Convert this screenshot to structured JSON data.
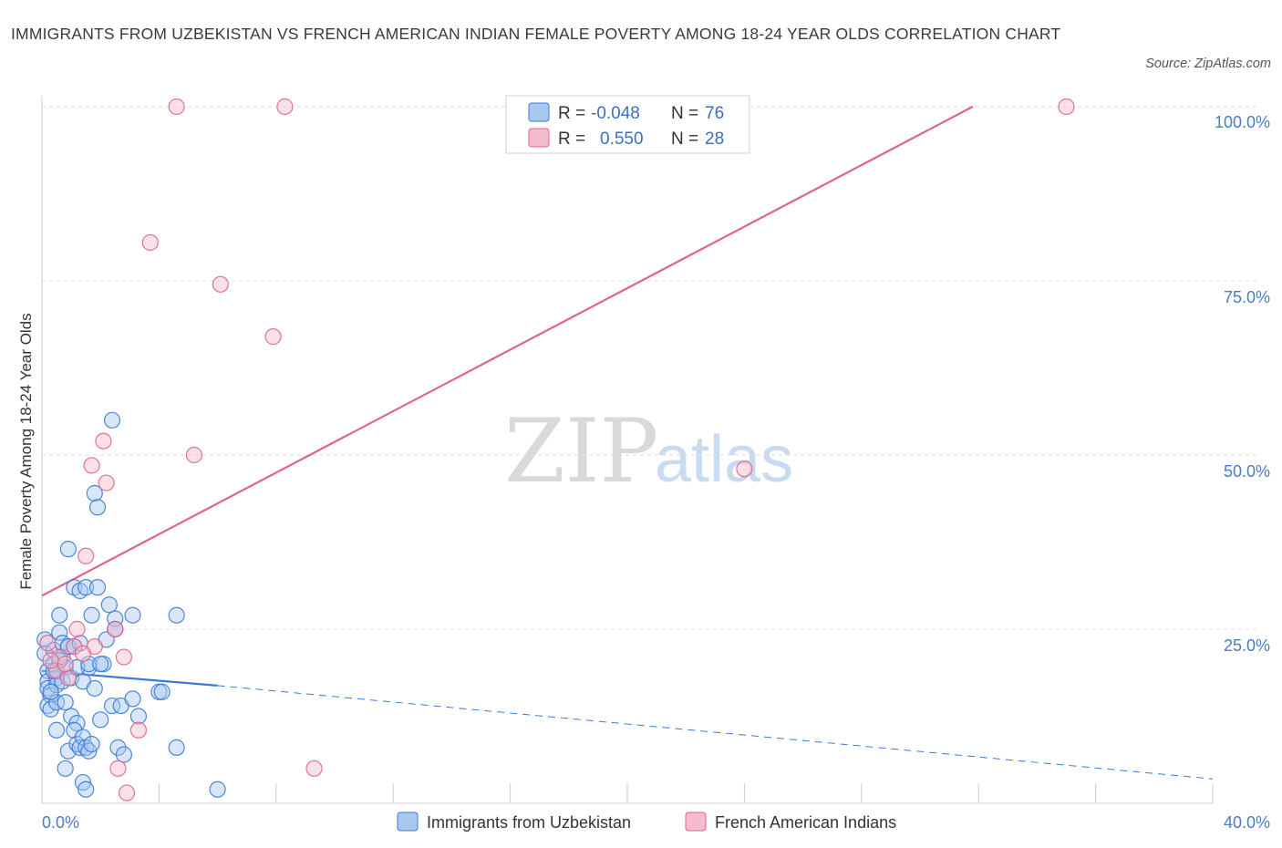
{
  "title": "IMMIGRANTS FROM UZBEKISTAN VS FRENCH AMERICAN INDIAN FEMALE POVERTY AMONG 18-24 YEAR OLDS CORRELATION CHART",
  "source": "Source: ZipAtlas.com",
  "watermark": {
    "zip": "ZIP",
    "atlas": "atlas"
  },
  "colors": {
    "blue": "#3a7bd5",
    "blue_fill": "#a9c8f0",
    "pink": "#e0648a",
    "pink_fill": "#f5bccd",
    "grid": "#dddddd",
    "tick_label": "#4a7cc4"
  },
  "chart_data": {
    "type": "scatter",
    "title": "IMMIGRANTS FROM UZBEKISTAN VS FRENCH AMERICAN INDIAN FEMALE POVERTY AMONG 18-24 YEAR OLDS CORRELATION CHART",
    "xlabel": "",
    "ylabel": "Female Poverty Among 18-24 Year Olds",
    "xlim": [
      0,
      40
    ],
    "ylim": [
      0,
      100
    ],
    "x_tick_labels": [
      "0.0%",
      "40.0%"
    ],
    "y_ticks": [
      25,
      50,
      75,
      100
    ],
    "y_tick_labels": [
      "25.0%",
      "50.0%",
      "75.0%",
      "100.0%"
    ],
    "legend": {
      "position": "top-center",
      "entries": [
        {
          "r_label": "R =",
          "r": "-0.048",
          "n_label": "N =",
          "n": "76"
        },
        {
          "r_label": "R =",
          "r": "0.550",
          "n_label": "N =",
          "n": "28"
        }
      ]
    },
    "bottom_legend": [
      "Immigrants from Uzbekistan",
      "French American Indians"
    ],
    "series": [
      {
        "name": "Immigrants from Uzbekistan",
        "color": "blue",
        "trend": {
          "solid": [
            [
              0,
              19.0
            ],
            [
              6.0,
              16.9
            ]
          ],
          "dashed": [
            [
              6.0,
              16.9
            ],
            [
              40,
              3.5
            ]
          ]
        },
        "points": [
          [
            0.1,
            23.5
          ],
          [
            0.1,
            21.5
          ],
          [
            0.2,
            19.0
          ],
          [
            0.2,
            17.5
          ],
          [
            0.2,
            16.5
          ],
          [
            0.3,
            15.5
          ],
          [
            0.2,
            14.0
          ],
          [
            0.3,
            13.5
          ],
          [
            0.4,
            22.0
          ],
          [
            0.4,
            20.0
          ],
          [
            0.5,
            18.0
          ],
          [
            0.5,
            17.0
          ],
          [
            0.6,
            24.5
          ],
          [
            0.6,
            27.0
          ],
          [
            0.5,
            14.5
          ],
          [
            0.5,
            10.5
          ],
          [
            0.7,
            23.0
          ],
          [
            0.7,
            21.0
          ],
          [
            0.8,
            19.5
          ],
          [
            0.7,
            17.5
          ],
          [
            0.8,
            14.5
          ],
          [
            0.9,
            36.5
          ],
          [
            0.9,
            22.5
          ],
          [
            0.8,
            5.0
          ],
          [
            1.0,
            18.0
          ],
          [
            0.9,
            7.5
          ],
          [
            1.0,
            12.5
          ],
          [
            1.1,
            31.0
          ],
          [
            1.1,
            22.5
          ],
          [
            1.2,
            11.5
          ],
          [
            1.1,
            10.5
          ],
          [
            1.2,
            8.5
          ],
          [
            1.3,
            30.5
          ],
          [
            1.3,
            8.0
          ],
          [
            1.4,
            17.5
          ],
          [
            1.4,
            9.5
          ],
          [
            1.5,
            31.0
          ],
          [
            1.5,
            8.0
          ],
          [
            1.4,
            3.0
          ],
          [
            1.5,
            2.0
          ],
          [
            1.6,
            19.5
          ],
          [
            1.6,
            7.5
          ],
          [
            1.7,
            27.0
          ],
          [
            1.7,
            8.5
          ],
          [
            1.8,
            44.5
          ],
          [
            1.8,
            16.5
          ],
          [
            1.9,
            42.5
          ],
          [
            1.9,
            31.0
          ],
          [
            2.0,
            12.0
          ],
          [
            2.1,
            20.0
          ],
          [
            2.2,
            23.5
          ],
          [
            2.3,
            28.5
          ],
          [
            2.4,
            55.0
          ],
          [
            2.4,
            14.0
          ],
          [
            2.5,
            25.0
          ],
          [
            2.5,
            26.5
          ],
          [
            2.6,
            8.0
          ],
          [
            2.7,
            14.0
          ],
          [
            2.8,
            7.0
          ],
          [
            3.1,
            27.0
          ],
          [
            3.1,
            15.0
          ],
          [
            3.3,
            12.5
          ],
          [
            4.0,
            16.0
          ],
          [
            4.1,
            16.0
          ],
          [
            4.6,
            27.0
          ],
          [
            4.6,
            8.0
          ],
          [
            6.0,
            2.0
          ],
          [
            0.6,
            20.5
          ],
          [
            1.2,
            19.5
          ],
          [
            0.3,
            16.0
          ],
          [
            2.5,
            25.0
          ],
          [
            0.9,
            22.5
          ],
          [
            1.3,
            23.0
          ],
          [
            1.6,
            20.0
          ],
          [
            0.4,
            19.0
          ],
          [
            2.0,
            20.0
          ]
        ]
      },
      {
        "name": "French American Indians",
        "color": "pink",
        "trend": {
          "solid": [
            [
              0,
              29.8
            ],
            [
              31.8,
              100
            ]
          ]
        },
        "points": [
          [
            4.6,
            100.0
          ],
          [
            8.3,
            100.0
          ],
          [
            35.0,
            100.0
          ],
          [
            3.7,
            80.5
          ],
          [
            6.1,
            74.5
          ],
          [
            7.9,
            67.0
          ],
          [
            2.1,
            52.0
          ],
          [
            5.2,
            50.0
          ],
          [
            1.7,
            48.5
          ],
          [
            2.2,
            46.0
          ],
          [
            24.0,
            48.0
          ],
          [
            1.5,
            35.5
          ],
          [
            1.2,
            25.0
          ],
          [
            2.5,
            25.0
          ],
          [
            0.2,
            23.0
          ],
          [
            1.1,
            22.5
          ],
          [
            1.8,
            22.5
          ],
          [
            0.6,
            21.0
          ],
          [
            1.4,
            21.5
          ],
          [
            2.8,
            21.0
          ],
          [
            0.5,
            19.0
          ],
          [
            0.9,
            18.0
          ],
          [
            3.3,
            10.5
          ],
          [
            2.6,
            5.0
          ],
          [
            9.3,
            5.0
          ],
          [
            2.9,
            1.5
          ],
          [
            0.3,
            20.5
          ],
          [
            0.8,
            20.0
          ]
        ]
      }
    ]
  }
}
